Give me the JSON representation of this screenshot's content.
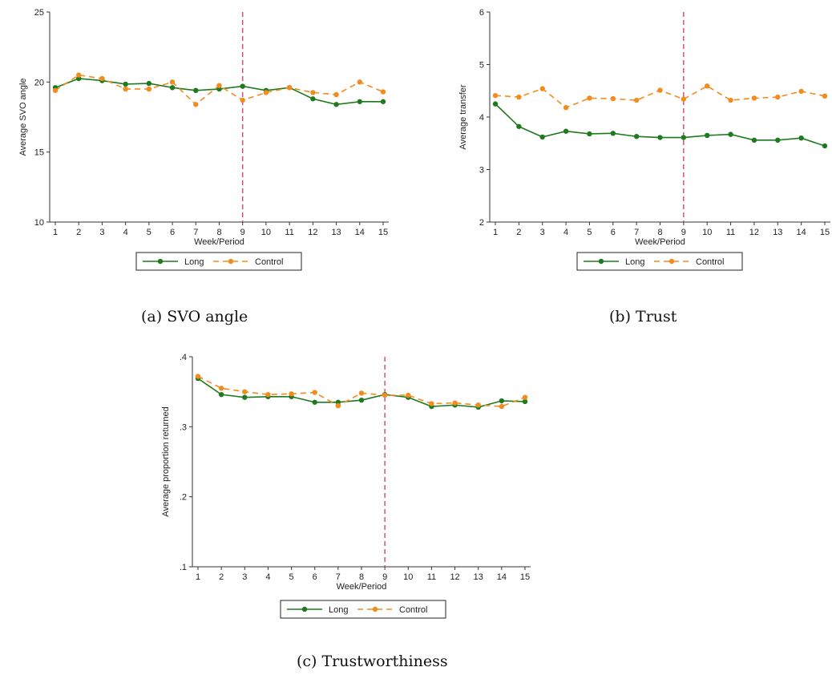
{
  "chart_data": [
    {
      "type": "line",
      "caption": "(a) SVO angle",
      "xlabel": "Week/Period",
      "ylabel": "Average SVO angle",
      "x": [
        1,
        2,
        3,
        4,
        5,
        6,
        7,
        8,
        9,
        10,
        11,
        12,
        13,
        14,
        15
      ],
      "xticks": [
        "1",
        "2",
        "3",
        "4",
        "5",
        "6",
        "7",
        "8",
        "9",
        "10",
        "11",
        "12",
        "13",
        "14",
        "15"
      ],
      "ylim": [
        10,
        25
      ],
      "yticks": [
        {
          "v": 10,
          "label": "10"
        },
        {
          "v": 15,
          "label": "15"
        },
        {
          "v": 20,
          "label": "20"
        },
        {
          "v": 25,
          "label": "25"
        }
      ],
      "vline_x": 9,
      "series": [
        {
          "name": "Long",
          "color": "#1f7a1f",
          "dash": "solid",
          "values": [
            19.6,
            20.25,
            20.1,
            19.85,
            19.9,
            19.6,
            19.4,
            19.5,
            19.7,
            19.4,
            19.6,
            18.8,
            18.4,
            18.6,
            18.6
          ]
        },
        {
          "name": "Control",
          "color": "#f28c1e",
          "dash": "dashed",
          "values": [
            19.4,
            20.5,
            20.25,
            19.5,
            19.5,
            20.0,
            18.4,
            19.75,
            18.7,
            19.25,
            19.6,
            19.25,
            19.1,
            20.0,
            19.3
          ]
        }
      ]
    },
    {
      "type": "line",
      "caption": "(b) Trust",
      "xlabel": "Week/Period",
      "ylabel": "Average transfer",
      "x": [
        1,
        2,
        3,
        4,
        5,
        6,
        7,
        8,
        9,
        10,
        11,
        12,
        13,
        14,
        15
      ],
      "xticks": [
        "1",
        "2",
        "3",
        "4",
        "5",
        "6",
        "7",
        "8",
        "9",
        "10",
        "11",
        "12",
        "13",
        "14",
        "15"
      ],
      "ylim": [
        2,
        6
      ],
      "yticks": [
        {
          "v": 2,
          "label": "2"
        },
        {
          "v": 3,
          "label": "3"
        },
        {
          "v": 4,
          "label": "4"
        },
        {
          "v": 5,
          "label": "5"
        },
        {
          "v": 6,
          "label": "6"
        }
      ],
      "vline_x": 9,
      "series": [
        {
          "name": "Long",
          "color": "#1f7a1f",
          "dash": "solid",
          "values": [
            4.25,
            3.82,
            3.62,
            3.73,
            3.68,
            3.69,
            3.63,
            3.61,
            3.61,
            3.65,
            3.67,
            3.56,
            3.56,
            3.6,
            3.45
          ]
        },
        {
          "name": "Control",
          "color": "#f28c1e",
          "dash": "dashed",
          "values": [
            4.41,
            4.38,
            4.54,
            4.18,
            4.36,
            4.35,
            4.32,
            4.51,
            4.34,
            4.59,
            4.32,
            4.36,
            4.38,
            4.49,
            4.4
          ]
        }
      ]
    },
    {
      "type": "line",
      "caption": "(c) Trustworthiness",
      "xlabel": "Week/Period",
      "ylabel": "Average proportion returned",
      "x": [
        1,
        2,
        3,
        4,
        5,
        6,
        7,
        8,
        9,
        10,
        11,
        12,
        13,
        14,
        15
      ],
      "xticks": [
        "1",
        "2",
        "3",
        "4",
        "5",
        "6",
        "7",
        "8",
        "9",
        "10",
        "11",
        "12",
        "13",
        "14",
        "15"
      ],
      "ylim": [
        0.1,
        0.4
      ],
      "yticks": [
        {
          "v": 0.1,
          "label": ".1"
        },
        {
          "v": 0.2,
          "label": ".2"
        },
        {
          "v": 0.3,
          "label": ".3"
        },
        {
          "v": 0.4,
          "label": ".4"
        }
      ],
      "vline_x": 9,
      "series": [
        {
          "name": "Long",
          "color": "#1f7a1f",
          "dash": "solid",
          "values": [
            0.369,
            0.346,
            0.342,
            0.343,
            0.343,
            0.335,
            0.335,
            0.338,
            0.346,
            0.342,
            0.329,
            0.331,
            0.328,
            0.337,
            0.336
          ]
        },
        {
          "name": "Control",
          "color": "#f28c1e",
          "dash": "dashed",
          "values": [
            0.372,
            0.355,
            0.35,
            0.346,
            0.347,
            0.349,
            0.33,
            0.348,
            0.345,
            0.345,
            0.333,
            0.334,
            0.331,
            0.329,
            0.342
          ]
        }
      ]
    }
  ]
}
